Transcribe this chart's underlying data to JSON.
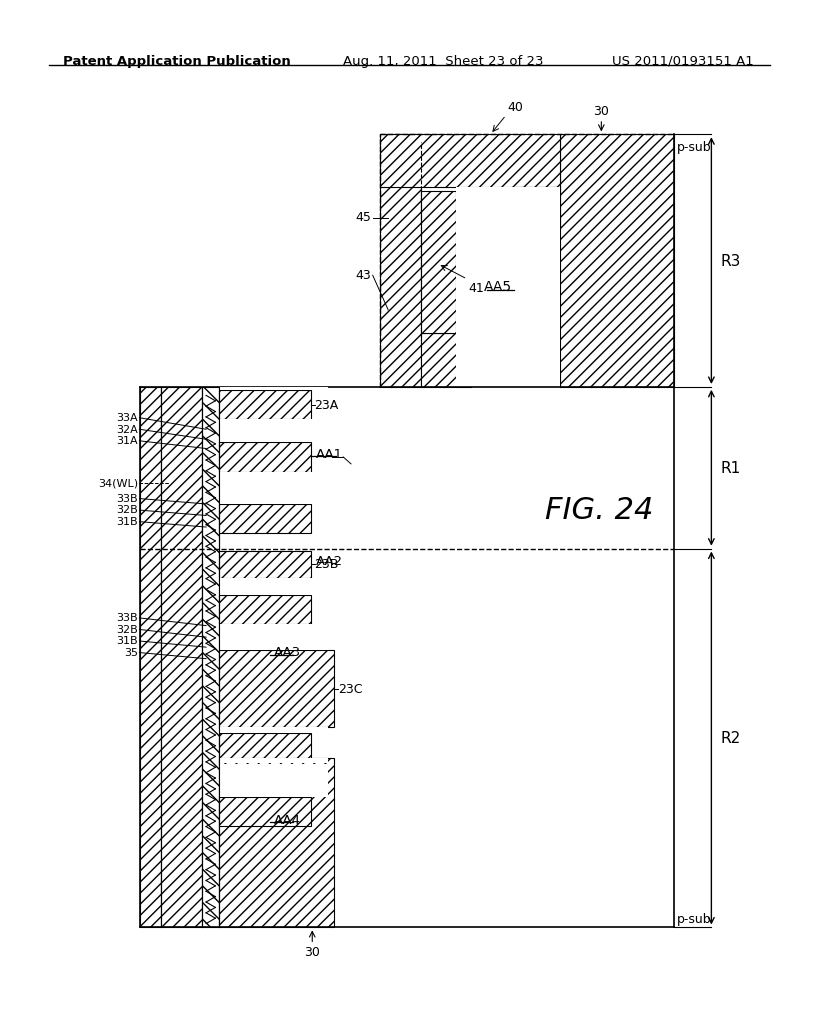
{
  "title_left": "Patent Application Publication",
  "title_mid": "Aug. 11, 2011  Sheet 23 of 23",
  "title_right": "US 2011/0193151 A1",
  "fig_label": "FIG. 24",
  "background": "#ffffff"
}
